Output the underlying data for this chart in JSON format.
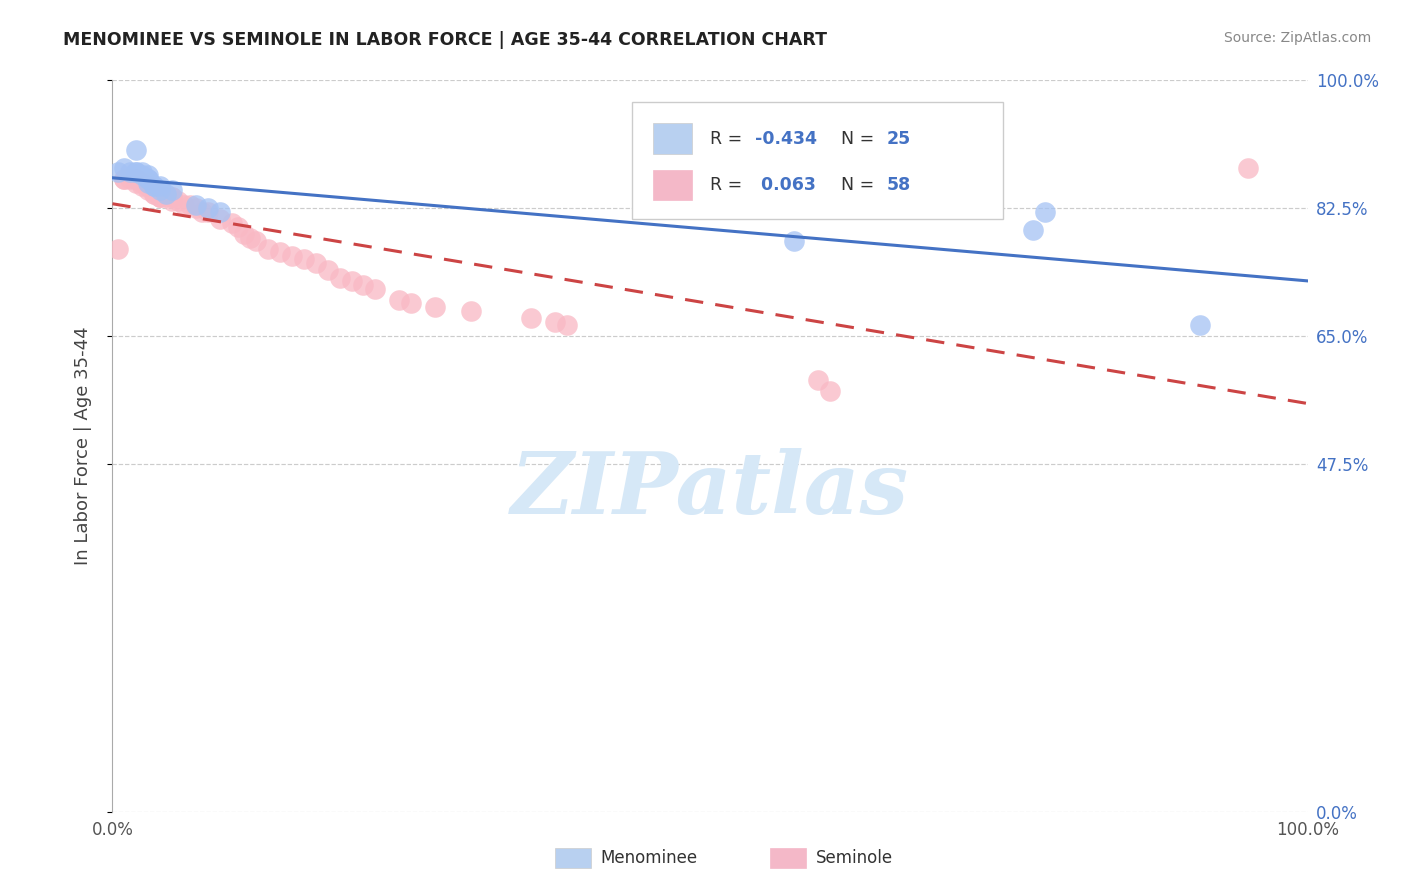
{
  "title": "MENOMINEE VS SEMINOLE IN LABOR FORCE | AGE 35-44 CORRELATION CHART",
  "source": "Source: ZipAtlas.com",
  "ylabel": "In Labor Force | Age 35-44",
  "xlim": [
    0.0,
    1.0
  ],
  "ylim": [
    0.0,
    1.0
  ],
  "ytick_values": [
    0.0,
    0.475,
    0.65,
    0.825,
    1.0
  ],
  "ytick_labels": [
    "0.0%",
    "47.5%",
    "65.0%",
    "82.5%",
    "100.0%"
  ],
  "xtick_values": [
    0.0,
    1.0
  ],
  "xtick_labels": [
    "0.0%",
    "100.0%"
  ],
  "color_blue_scatter": "#a4c2f4",
  "color_pink_scatter": "#f9b8c4",
  "color_blue_line": "#4472c4",
  "color_pink_line": "#cc4444",
  "color_grid": "#cccccc",
  "watermark": "ZIPatlas",
  "watermark_color": "#d6e8f7",
  "menominee_x": [
    0.005,
    0.01,
    0.015,
    0.02,
    0.02,
    0.02,
    0.025,
    0.025,
    0.03,
    0.03,
    0.03,
    0.03,
    0.035,
    0.035,
    0.04,
    0.04,
    0.045,
    0.05,
    0.07,
    0.08,
    0.09,
    0.57,
    0.77,
    0.78,
    0.91
  ],
  "menominee_y": [
    0.875,
    0.88,
    0.875,
    0.875,
    0.905,
    0.875,
    0.87,
    0.875,
    0.865,
    0.865,
    0.87,
    0.86,
    0.855,
    0.855,
    0.85,
    0.855,
    0.845,
    0.85,
    0.83,
    0.825,
    0.82,
    0.78,
    0.795,
    0.82,
    0.665
  ],
  "seminole_x": [
    0.005,
    0.01,
    0.01,
    0.015,
    0.02,
    0.02,
    0.02,
    0.02,
    0.025,
    0.025,
    0.03,
    0.03,
    0.03,
    0.03,
    0.03,
    0.03,
    0.035,
    0.035,
    0.04,
    0.04,
    0.04,
    0.04,
    0.045,
    0.05,
    0.05,
    0.05,
    0.055,
    0.06,
    0.065,
    0.07,
    0.075,
    0.08,
    0.09,
    0.1,
    0.105,
    0.11,
    0.115,
    0.12,
    0.13,
    0.14,
    0.15,
    0.16,
    0.17,
    0.18,
    0.19,
    0.2,
    0.21,
    0.22,
    0.24,
    0.25,
    0.27,
    0.3,
    0.35,
    0.37,
    0.38,
    0.59,
    0.6,
    0.95
  ],
  "seminole_y": [
    0.77,
    0.865,
    0.865,
    0.865,
    0.865,
    0.865,
    0.865,
    0.86,
    0.855,
    0.86,
    0.86,
    0.855,
    0.855,
    0.855,
    0.855,
    0.85,
    0.845,
    0.845,
    0.845,
    0.84,
    0.84,
    0.84,
    0.84,
    0.84,
    0.84,
    0.835,
    0.835,
    0.83,
    0.83,
    0.825,
    0.82,
    0.82,
    0.81,
    0.805,
    0.8,
    0.79,
    0.785,
    0.78,
    0.77,
    0.765,
    0.76,
    0.755,
    0.75,
    0.74,
    0.73,
    0.725,
    0.72,
    0.715,
    0.7,
    0.695,
    0.69,
    0.685,
    0.675,
    0.67,
    0.665,
    0.59,
    0.575,
    0.88
  ]
}
